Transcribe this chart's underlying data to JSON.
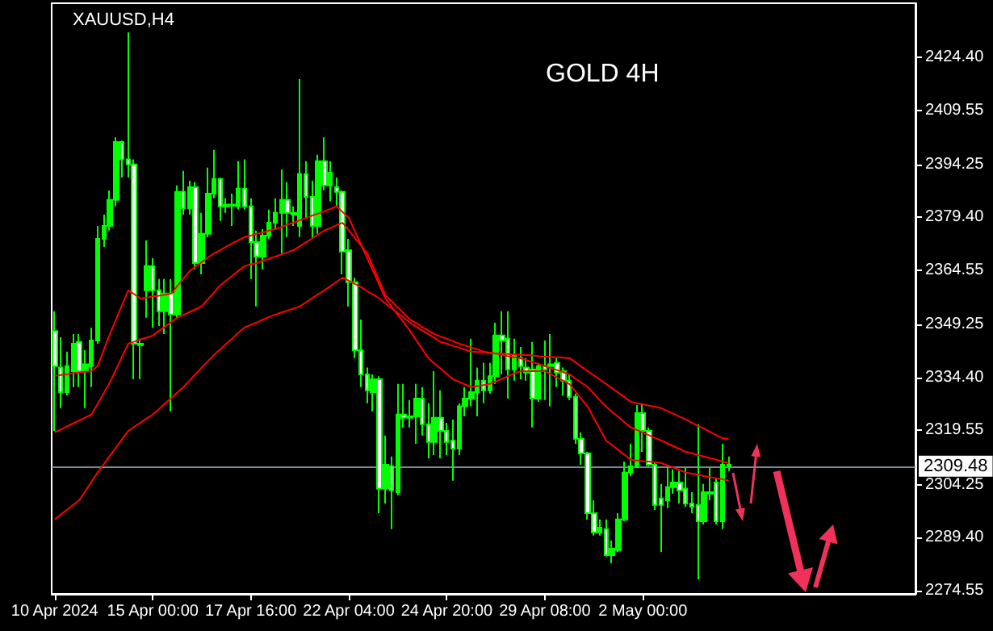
{
  "chart_data": {
    "type": "candlestick",
    "title": "XAUUSD,H4",
    "annotations": [
      "GOLD 4H"
    ],
    "categories": [
      "10 Apr 2024",
      null,
      null,
      null,
      null,
      null,
      null,
      null,
      null,
      null,
      null,
      null,
      null,
      null,
      null,
      null,
      "15 Apr 00:00",
      null,
      null,
      null,
      null,
      null,
      null,
      null,
      null,
      null,
      null,
      null,
      null,
      null,
      null,
      null,
      "17 Apr 16:00",
      null,
      null,
      null,
      null,
      null,
      null,
      null,
      null,
      null,
      null,
      null,
      null,
      null,
      null,
      null,
      "22 Apr 04:00",
      null,
      null,
      null,
      null,
      null,
      null,
      null,
      null,
      null,
      null,
      null,
      null,
      null,
      null,
      null,
      "24 Apr 20:00",
      null,
      null,
      null,
      null,
      null,
      null,
      null,
      null,
      null,
      null,
      null,
      null,
      null,
      null,
      null,
      "29 Apr 08:00",
      null,
      null,
      null,
      null,
      null,
      null,
      null,
      null,
      null,
      null,
      null,
      null,
      null,
      null,
      null,
      "2 May 00:00",
      null,
      null,
      null,
      null,
      null,
      null,
      null,
      null,
      null,
      null,
      null,
      null,
      null,
      null,
      null,
      null,
      null,
      null,
      null,
      null,
      null,
      null,
      null,
      null,
      null,
      null,
      null,
      null,
      null,
      null,
      null,
      null,
      null,
      null,
      null,
      null,
      null,
      null,
      null,
      null,
      null,
      null,
      null,
      null
    ],
    "color": "#00ff00",
    "ohlc": [
      [
        2347.5,
        2353.0,
        2319.4,
        2337.6
      ],
      [
        2337.2,
        2345.7,
        2325.8,
        2330.3
      ],
      [
        2330.3,
        2341.7,
        2329.4,
        2337.6
      ],
      [
        2336.2,
        2346.6,
        2331.7,
        2343.9
      ],
      [
        2344.4,
        2346.6,
        2331.7,
        2336.2
      ],
      [
        2336.2,
        2342.1,
        2325.8,
        2338.1
      ],
      [
        2337.6,
        2348.4,
        2331.7,
        2344.8
      ],
      [
        2344.8,
        2377.0,
        2343.9,
        2373.4
      ],
      [
        2373.4,
        2380.2,
        2371.1,
        2377.0
      ],
      [
        2377.0,
        2387.0,
        2375.7,
        2384.3
      ],
      [
        2384.3,
        2401.9,
        2382.5,
        2400.6
      ],
      [
        2400.6,
        2401.0,
        2390.6,
        2395.7
      ],
      [
        2395.7,
        2431.4,
        2390.6,
        2394.3
      ],
      [
        2394.3,
        2395.7,
        2333.9,
        2343.9
      ],
      [
        2343.9,
        2345.3,
        2333.9,
        2343.5
      ],
      [
        2358.9,
        2372.9,
        2351.2,
        2365.7
      ],
      [
        2365.7,
        2368.0,
        2348.4,
        2358.9
      ],
      [
        2358.9,
        2362.1,
        2348.9,
        2353.0
      ],
      [
        2353.0,
        2362.1,
        2346.6,
        2358.0
      ],
      [
        2358.0,
        2362.1,
        2324.9,
        2352.1
      ],
      [
        2352.1,
        2388.4,
        2351.2,
        2386.6
      ],
      [
        2386.6,
        2392.5,
        2380.2,
        2382.0
      ],
      [
        2382.0,
        2389.7,
        2380.2,
        2387.9
      ],
      [
        2387.9,
        2389.3,
        2364.8,
        2366.6
      ],
      [
        2366.6,
        2380.7,
        2363.4,
        2374.8
      ],
      [
        2374.8,
        2393.4,
        2373.9,
        2386.1
      ],
      [
        2386.1,
        2398.4,
        2384.8,
        2390.2
      ],
      [
        2390.2,
        2390.6,
        2378.4,
        2382.5
      ],
      [
        2382.5,
        2384.8,
        2380.7,
        2383.0
      ],
      [
        2383.0,
        2386.1,
        2377.0,
        2382.7
      ],
      [
        2382.5,
        2395.2,
        2381.6,
        2387.5
      ],
      [
        2387.5,
        2395.7,
        2381.6,
        2382.5
      ],
      [
        2382.5,
        2384.8,
        2362.1,
        2372.5
      ],
      [
        2372.5,
        2375.7,
        2354.4,
        2368.4
      ],
      [
        2368.4,
        2376.1,
        2364.8,
        2374.3
      ],
      [
        2374.3,
        2381.6,
        2373.4,
        2377.9
      ],
      [
        2377.9,
        2384.8,
        2376.1,
        2380.7
      ],
      [
        2380.7,
        2392.9,
        2369.3,
        2384.3
      ],
      [
        2384.3,
        2389.3,
        2373.9,
        2380.7
      ],
      [
        2380.7,
        2382.5,
        2377.0,
        2380.2
      ],
      [
        2377.0,
        2418.3,
        2373.9,
        2391.6
      ],
      [
        2391.6,
        2395.2,
        2379.3,
        2385.2
      ],
      [
        2385.2,
        2389.7,
        2373.4,
        2377.0
      ],
      [
        2377.0,
        2397.0,
        2374.8,
        2395.2
      ],
      [
        2395.2,
        2401.9,
        2387.0,
        2388.4
      ],
      [
        2388.4,
        2395.2,
        2383.9,
        2392.0
      ],
      [
        2387.9,
        2390.6,
        2382.5,
        2386.6
      ],
      [
        2386.6,
        2387.0,
        2363.4,
        2369.8
      ],
      [
        2370.2,
        2373.4,
        2354.4,
        2361.2
      ],
      [
        2361.2,
        2362.5,
        2339.9,
        2342.1
      ],
      [
        2342.1,
        2350.7,
        2331.7,
        2335.3
      ],
      [
        2335.3,
        2337.2,
        2327.2,
        2330.8
      ],
      [
        2330.3,
        2335.3,
        2324.9,
        2333.9
      ],
      [
        2333.9,
        2334.8,
        2296.3,
        2303.2
      ],
      [
        2303.2,
        2318.1,
        2299.0,
        2309.9
      ],
      [
        2309.5,
        2312.2,
        2291.8,
        2302.7
      ],
      [
        2302.2,
        2332.6,
        2301.3,
        2324.0
      ],
      [
        2324.0,
        2332.6,
        2320.4,
        2323.1
      ],
      [
        2323.1,
        2328.1,
        2320.4,
        2323.5
      ],
      [
        2323.5,
        2332.6,
        2315.8,
        2328.5
      ],
      [
        2328.5,
        2331.7,
        2318.1,
        2321.3
      ],
      [
        2321.3,
        2327.2,
        2311.7,
        2316.3
      ],
      [
        2316.3,
        2336.2,
        2312.6,
        2323.1
      ],
      [
        2323.1,
        2330.8,
        2311.7,
        2319.4
      ],
      [
        2319.4,
        2321.7,
        2312.6,
        2316.3
      ],
      [
        2316.7,
        2322.6,
        2305.4,
        2314.4
      ],
      [
        2314.4,
        2327.2,
        2312.6,
        2326.3
      ],
      [
        2326.3,
        2331.7,
        2323.5,
        2328.5
      ],
      [
        2328.5,
        2345.3,
        2326.3,
        2330.3
      ],
      [
        2330.3,
        2337.2,
        2323.5,
        2333.5
      ],
      [
        2333.5,
        2338.5,
        2327.2,
        2330.8
      ],
      [
        2330.8,
        2338.5,
        2329.9,
        2334.8
      ],
      [
        2334.8,
        2349.8,
        2332.6,
        2346.2
      ],
      [
        2346.2,
        2353.0,
        2335.3,
        2344.8
      ],
      [
        2345.3,
        2353.0,
        2328.5,
        2336.7
      ],
      [
        2336.7,
        2345.3,
        2333.5,
        2340.8
      ],
      [
        2339.9,
        2343.0,
        2333.9,
        2337.6
      ],
      [
        2337.2,
        2339.9,
        2333.5,
        2335.8
      ],
      [
        2336.7,
        2344.4,
        2320.4,
        2328.5
      ],
      [
        2328.5,
        2338.5,
        2327.6,
        2337.6
      ],
      [
        2337.6,
        2344.8,
        2328.1,
        2336.7
      ],
      [
        2337.6,
        2346.6,
        2326.3,
        2338.1
      ],
      [
        2338.5,
        2339.9,
        2331.7,
        2335.8
      ],
      [
        2336.2,
        2337.2,
        2329.4,
        2333.5
      ],
      [
        2333.5,
        2335.3,
        2328.1,
        2329.0
      ],
      [
        2329.0,
        2329.9,
        2315.8,
        2317.2
      ],
      [
        2317.2,
        2319.0,
        2309.9,
        2313.1
      ],
      [
        2313.1,
        2313.5,
        2294.5,
        2296.3
      ],
      [
        2296.3,
        2299.9,
        2290.0,
        2290.9
      ],
      [
        2290.9,
        2294.5,
        2290.0,
        2292.2
      ],
      [
        2291.8,
        2294.5,
        2284.1,
        2284.5
      ],
      [
        2284.5,
        2288.6,
        2282.2,
        2286.3
      ],
      [
        2285.9,
        2296.3,
        2285.4,
        2294.5
      ],
      [
        2294.5,
        2310.8,
        2294.0,
        2307.7
      ],
      [
        2307.7,
        2315.8,
        2306.7,
        2309.5
      ],
      [
        2309.5,
        2326.7,
        2309.0,
        2324.4
      ],
      [
        2324.4,
        2327.2,
        2313.5,
        2319.4
      ],
      [
        2319.4,
        2320.4,
        2309.5,
        2309.9
      ],
      [
        2309.9,
        2310.4,
        2297.2,
        2298.6
      ],
      [
        2300.4,
        2304.5,
        2285.4,
        2298.6
      ],
      [
        2299.9,
        2309.0,
        2297.7,
        2303.6
      ],
      [
        2303.6,
        2308.6,
        2301.8,
        2304.9
      ],
      [
        2304.9,
        2308.1,
        2299.0,
        2302.7
      ],
      [
        2303.2,
        2309.0,
        2298.1,
        2299.0
      ],
      [
        2299.0,
        2302.2,
        2296.3,
        2298.1
      ],
      [
        2298.6,
        2321.3,
        2277.7,
        2294.0
      ],
      [
        2294.0,
        2304.5,
        2293.1,
        2302.2
      ],
      [
        2301.8,
        2309.0,
        2299.9,
        2302.2
      ],
      [
        2304.9,
        2305.9,
        2293.1,
        2294.0
      ],
      [
        2294.0,
        2315.8,
        2291.8,
        2309.9
      ],
      [
        2309.9,
        2312.2,
        2308.1,
        2309.48
      ],
      null,
      null,
      null,
      null,
      null,
      null,
      null,
      null,
      null,
      null,
      null,
      null,
      null,
      null,
      null,
      null,
      null,
      null,
      null,
      null,
      null,
      null,
      null,
      null,
      null,
      null,
      null,
      null,
      null,
      null
    ],
    "series": [
      {
        "type": "line",
        "color": "#ff0000",
        "values": [
          2334.9,
          2335.1,
          2335.3,
          2335.6,
          2335.8,
          2336.0,
          2336.2,
          2337.6,
          2342.1,
          2346.6,
          2350.7,
          2354.8,
          2358.9,
          2357.8,
          2356.6,
          2356.9,
          2357.2,
          2357.4,
          2357.7,
          2358.0,
          2360.1,
          2362.2,
          2364.3,
          2365.6,
          2366.8,
          2368.1,
          2369.3,
          2370.2,
          2371.2,
          2372.1,
          2373.0,
          2373.9,
          2374.3,
          2374.8,
          2375.2,
          2375.7,
          2376.1,
          2376.7,
          2377.4,
          2378.0,
          2378.6,
          2379.2,
          2379.9,
          2380.5,
          2381.1,
          2381.8,
          2382.5,
          2380.9,
          2379.3,
          2375.5,
          2371.8,
          2368.0,
          2364.2,
          2360.4,
          2356.6,
          2354.3,
          2352.0,
          2349.8,
          2347.5,
          2344.9,
          2342.4,
          2339.8,
          2338.3,
          2336.9,
          2335.4,
          2333.9,
          2333.2,
          2332.4,
          2331.7,
          2332.0,
          2332.3,
          2332.6,
          2333.3,
          2334.0,
          2334.8,
          2335.5,
          2336.2,
          2336.2,
          2336.2,
          2336.2,
          2336.2,
          2335.3,
          2334.4,
          2333.5,
          2332.6,
          2330.5,
          2328.3,
          2326.2,
          2323.0,
          2319.9,
          2316.7,
          2315.4,
          2314.0,
          2312.7,
          2311.3,
          2311.1,
          2310.9,
          2310.8,
          2310.6,
          2310.4,
          2309.7,
          2309.1,
          2308.4,
          2307.7,
          2307.4,
          2307.1,
          2306.7,
          2306.4,
          2306.1,
          2305.8,
          2305.4,
          null,
          null,
          null,
          null,
          null,
          null,
          null,
          null,
          null,
          null,
          null,
          null,
          null,
          null,
          null,
          null,
          null,
          null,
          null,
          null,
          null,
          null,
          null,
          null,
          null,
          null,
          null,
          null,
          null,
          null
        ]
      },
      {
        "type": "line",
        "color": "#ff0000",
        "values": [
          2319.0,
          2319.8,
          2320.7,
          2321.5,
          2322.3,
          2323.2,
          2324.0,
          2327.0,
          2330.0,
          2333.0,
          2336.6,
          2340.3,
          2343.9,
          2344.5,
          2345.1,
          2345.6,
          2346.2,
          2347.5,
          2348.7,
          2350.0,
          2351.2,
          2352.0,
          2352.8,
          2353.6,
          2354.4,
          2356.4,
          2358.3,
          2360.3,
          2361.7,
          2363.0,
          2364.4,
          2365.7,
          2366.2,
          2366.6,
          2367.2,
          2367.8,
          2368.4,
          2369.0,
          2369.6,
          2370.2,
          2371.3,
          2372.4,
          2373.5,
          2374.6,
          2375.7,
          2376.4,
          2377.2,
          2377.9,
          2375.8,
          2373.6,
          2371.5,
          2369.3,
          2365.4,
          2361.4,
          2357.5,
          2355.8,
          2354.1,
          2352.4,
          2350.7,
          2349.7,
          2348.6,
          2347.6,
          2346.6,
          2345.9,
          2345.3,
          2344.6,
          2343.9,
          2343.4,
          2342.8,
          2342.3,
          2341.7,
          2341.4,
          2341.1,
          2340.8,
          2340.4,
          2340.1,
          2339.8,
          2339.3,
          2338.7,
          2338.2,
          2337.6,
          2337.0,
          2336.5,
          2335.9,
          2335.3,
          2334.1,
          2332.9,
          2331.7,
          2329.9,
          2328.0,
          2326.2,
          2324.7,
          2323.3,
          2321.8,
          2320.4,
          2319.7,
          2318.9,
          2318.2,
          2317.4,
          2316.7,
          2315.9,
          2315.1,
          2314.3,
          2313.5,
          2313.1,
          2312.6,
          2312.2,
          2311.7,
          2311.3,
          2310.8,
          2310.4,
          null,
          null,
          null,
          null,
          null,
          null,
          null,
          null,
          null,
          null,
          null,
          null,
          null,
          null,
          null,
          null,
          null,
          null,
          null,
          null,
          null,
          null,
          null,
          null,
          null,
          null,
          null,
          null,
          null,
          null
        ]
      },
      {
        "type": "line",
        "color": "#ff0000",
        "values": [
          2294.5,
          2295.9,
          2297.2,
          2298.6,
          2299.9,
          2302.5,
          2305.1,
          2307.7,
          2310.0,
          2312.4,
          2314.7,
          2317.1,
          2319.4,
          2320.6,
          2321.7,
          2322.9,
          2324.0,
          2325.5,
          2327.1,
          2328.6,
          2330.2,
          2331.7,
          2333.5,
          2335.4,
          2337.2,
          2339.0,
          2340.8,
          2342.3,
          2343.9,
          2345.4,
          2347.0,
          2348.5,
          2349.2,
          2349.9,
          2350.7,
          2351.4,
          2352.1,
          2352.7,
          2353.2,
          2353.8,
          2354.4,
          2355.5,
          2356.7,
          2357.8,
          2358.9,
          2360.1,
          2361.3,
          2362.5,
          2361.6,
          2360.7,
          2359.8,
          2358.7,
          2357.7,
          2356.6,
          2355.2,
          2353.9,
          2352.5,
          2351.2,
          2349.8,
          2348.7,
          2347.6,
          2346.6,
          2345.5,
          2344.4,
          2343.9,
          2343.3,
          2342.8,
          2342.2,
          2341.7,
          2341.6,
          2341.5,
          2341.3,
          2341.2,
          2341.1,
          2341.0,
          2340.9,
          2340.8,
          2340.7,
          2340.6,
          2340.4,
          2340.3,
          2340.2,
          2340.1,
          2340.0,
          2339.9,
          2338.7,
          2337.4,
          2336.2,
          2335.0,
          2333.8,
          2332.6,
          2331.4,
          2330.1,
          2328.9,
          2327.6,
          2327.2,
          2326.9,
          2326.5,
          2326.2,
          2325.8,
          2325.0,
          2324.2,
          2323.4,
          2322.6,
          2321.7,
          2320.8,
          2320.0,
          2319.1,
          2318.2,
          2317.3,
          2317.2,
          null,
          null,
          null,
          null,
          null,
          null,
          null,
          null,
          null,
          null,
          null,
          null,
          null,
          null,
          null,
          null,
          null,
          null,
          null,
          null,
          null,
          null,
          null,
          null,
          null,
          null,
          null,
          null,
          null,
          null
        ]
      }
    ],
    "ylim": [
      2273.6,
      2439.6
    ],
    "yticks": [
      2274.55,
      {
        "value": 2289.4,
        "label": "2289.40"
      },
      2304.25,
      2319.55,
      {
        "value": 2334.4,
        "label": "2334.40"
      },
      2349.25,
      2364.55,
      {
        "value": 2379.4,
        "label": "2379.40"
      },
      2394.25,
      2409.55,
      {
        "value": 2424.4,
        "label": "2424.40"
      }
    ],
    "ref_lines": [
      {
        "axis": "y",
        "value": 2309.48,
        "label": "2309.48",
        "color": "#778899"
      }
    ],
    "marker": "none",
    "line_style": "solid"
  }
}
